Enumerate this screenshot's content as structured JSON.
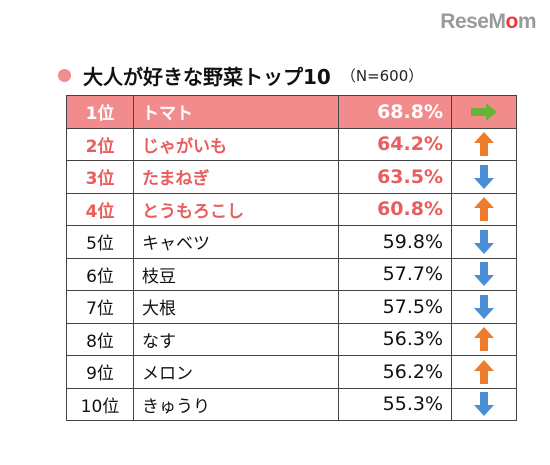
{
  "logo": {
    "text_a": "ReseM",
    "text_dot": "o",
    "text_b": "m"
  },
  "heading": {
    "title": "大人が好きな野菜トップ10",
    "sample": "（N=600）"
  },
  "colors": {
    "up": "#ee7d2b",
    "down": "#4a8fd6",
    "same": "#67b337",
    "highlight": "#f28b8b",
    "top_text": "#e85d5d"
  },
  "chart_data": {
    "type": "table",
    "title": "大人が好きな野菜トップ10",
    "note": "（N=600）",
    "rows": [
      {
        "rank": "1位",
        "name": "トマト",
        "percent": "68.8%",
        "trend": "same"
      },
      {
        "rank": "2位",
        "name": "じゃがいも",
        "percent": "64.2%",
        "trend": "up"
      },
      {
        "rank": "3位",
        "name": "たまねぎ",
        "percent": "63.5%",
        "trend": "down"
      },
      {
        "rank": "4位",
        "name": "とうもろこし",
        "percent": "60.8%",
        "trend": "up"
      },
      {
        "rank": "5位",
        "name": "キャベツ",
        "percent": "59.8%",
        "trend": "down"
      },
      {
        "rank": "6位",
        "name": "枝豆",
        "percent": "57.7%",
        "trend": "down"
      },
      {
        "rank": "7位",
        "name": "大根",
        "percent": "57.5%",
        "trend": "down"
      },
      {
        "rank": "8位",
        "name": "なす",
        "percent": "56.3%",
        "trend": "up"
      },
      {
        "rank": "9位",
        "name": "メロン",
        "percent": "56.2%",
        "trend": "up"
      },
      {
        "rank": "10位",
        "name": "きゅうり",
        "percent": "55.3%",
        "trend": "down"
      }
    ]
  }
}
